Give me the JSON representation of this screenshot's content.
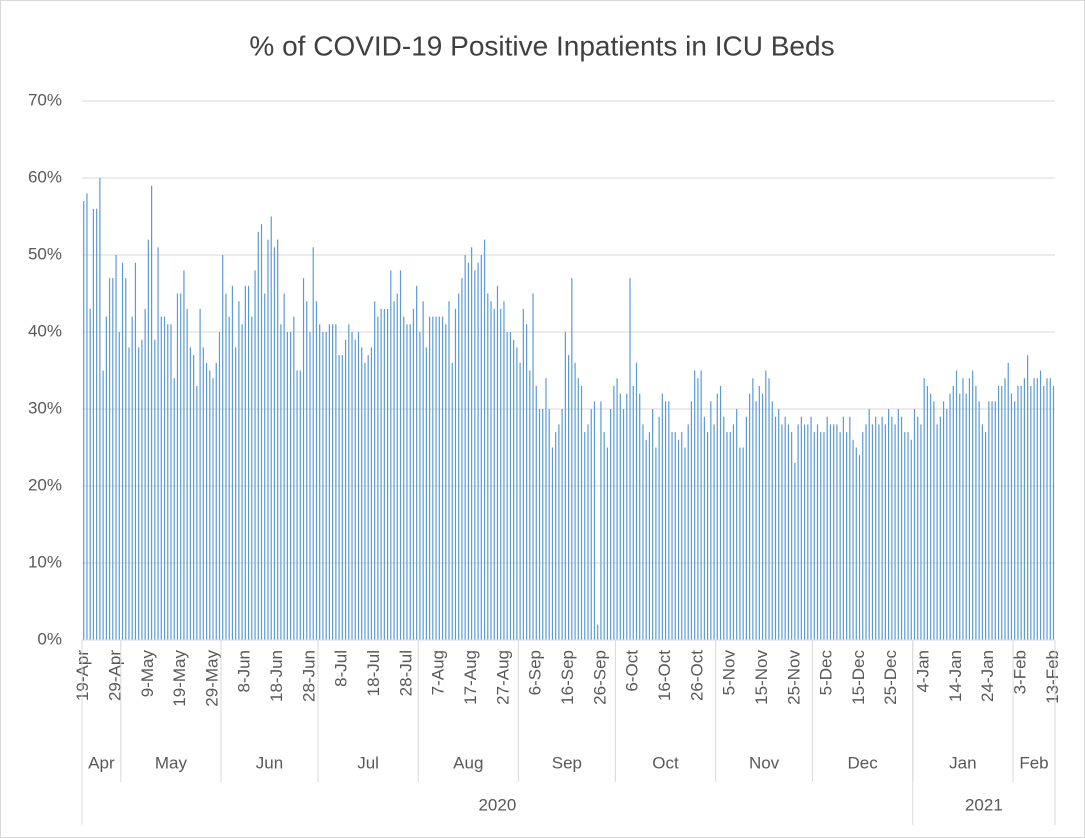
{
  "chart_data": {
    "type": "bar",
    "title": "% of COVID-19 Positive Inpatients in ICU Beds",
    "categories": [
      "19-Apr",
      null,
      null,
      null,
      null,
      null,
      null,
      null,
      null,
      null,
      "29-Apr",
      null,
      null,
      null,
      null,
      null,
      null,
      null,
      null,
      null,
      "9-May",
      null,
      null,
      null,
      null,
      null,
      null,
      null,
      null,
      null,
      "19-May",
      null,
      null,
      null,
      null,
      null,
      null,
      null,
      null,
      null,
      "29-May",
      null,
      null,
      null,
      null,
      null,
      null,
      null,
      null,
      null,
      "8-Jun",
      null,
      null,
      null,
      null,
      null,
      null,
      null,
      null,
      null,
      "18-Jun",
      null,
      null,
      null,
      null,
      null,
      null,
      null,
      null,
      null,
      "28-Jun",
      null,
      null,
      null,
      null,
      null,
      null,
      null,
      null,
      null,
      "8-Jul",
      null,
      null,
      null,
      null,
      null,
      null,
      null,
      null,
      null,
      "18-Jul",
      null,
      null,
      null,
      null,
      null,
      null,
      null,
      null,
      null,
      "28-Jul",
      null,
      null,
      null,
      null,
      null,
      null,
      null,
      null,
      null,
      "7-Aug",
      null,
      null,
      null,
      null,
      null,
      null,
      null,
      null,
      null,
      "17-Aug",
      null,
      null,
      null,
      null,
      null,
      null,
      null,
      null,
      null,
      "27-Aug",
      null,
      null,
      null,
      null,
      null,
      null,
      null,
      null,
      null,
      "6-Sep",
      null,
      null,
      null,
      null,
      null,
      null,
      null,
      null,
      null,
      "16-Sep",
      null,
      null,
      null,
      null,
      null,
      null,
      null,
      null,
      null,
      "26-Sep",
      null,
      null,
      null,
      null,
      null,
      null,
      null,
      null,
      null,
      "6-Oct",
      null,
      null,
      null,
      null,
      null,
      null,
      null,
      null,
      null,
      "16-Oct",
      null,
      null,
      null,
      null,
      null,
      null,
      null,
      null,
      null,
      "26-Oct",
      null,
      null,
      null,
      null,
      null,
      null,
      null,
      null,
      null,
      "5-Nov",
      null,
      null,
      null,
      null,
      null,
      null,
      null,
      null,
      null,
      "15-Nov",
      null,
      null,
      null,
      null,
      null,
      null,
      null,
      null,
      null,
      "25-Nov",
      null,
      null,
      null,
      null,
      null,
      null,
      null,
      null,
      null,
      "5-Dec",
      null,
      null,
      null,
      null,
      null,
      null,
      null,
      null,
      null,
      "15-Dec",
      null,
      null,
      null,
      null,
      null,
      null,
      null,
      null,
      null,
      "25-Dec",
      null,
      null,
      null,
      null,
      null,
      null,
      null,
      null,
      null,
      "4-Jan",
      null,
      null,
      null,
      null,
      null,
      null,
      null,
      null,
      null,
      "14-Jan",
      null,
      null,
      null,
      null,
      null,
      null,
      null,
      null,
      null,
      "24-Jan",
      null,
      null,
      null,
      null,
      null,
      null,
      null,
      null,
      null,
      "3-Feb",
      null,
      null,
      null,
      null,
      null,
      null,
      null,
      null,
      null,
      "13-Feb"
    ],
    "values": [
      57,
      58,
      43,
      56,
      56,
      60,
      35,
      42,
      47,
      47,
      50,
      40,
      49,
      47,
      38,
      42,
      49,
      38,
      39,
      43,
      52,
      59,
      39,
      51,
      42,
      42,
      41,
      41,
      34,
      45,
      45,
      48,
      43,
      38,
      37,
      33,
      43,
      38,
      36,
      35,
      34,
      36,
      40,
      50,
      45,
      42,
      46,
      38,
      44,
      41,
      46,
      46,
      42,
      48,
      53,
      54,
      45,
      52,
      55,
      51,
      52,
      41,
      45,
      40,
      40,
      42,
      35,
      35,
      47,
      44,
      40,
      51,
      44,
      41,
      40,
      40,
      41,
      41,
      41,
      37,
      37,
      39,
      41,
      40,
      39,
      40,
      38,
      36,
      37,
      38,
      44,
      42,
      43,
      43,
      43,
      48,
      44,
      45,
      48,
      42,
      41,
      41,
      43,
      46,
      40,
      44,
      38,
      42,
      42,
      42,
      42,
      42,
      41,
      44,
      36,
      43,
      45,
      47,
      50,
      49,
      51,
      48,
      49,
      50,
      52,
      45,
      44,
      43,
      46,
      43,
      44,
      40,
      40,
      39,
      38,
      36,
      43,
      41,
      35,
      45,
      33,
      30,
      30,
      34,
      30,
      25,
      27,
      28,
      30,
      40,
      37,
      47,
      36,
      34,
      33,
      27,
      28,
      30,
      31,
      2,
      31,
      27,
      25,
      30,
      33,
      34,
      32,
      30,
      32,
      47,
      33,
      36,
      32,
      28,
      26,
      27,
      30,
      25,
      29,
      32,
      31,
      31,
      27,
      27,
      26,
      27,
      25,
      28,
      31,
      35,
      34,
      35,
      29,
      27,
      31,
      28,
      32,
      33,
      29,
      27,
      27,
      28,
      30,
      25,
      25,
      29,
      32,
      34,
      31,
      33,
      32,
      35,
      34,
      31,
      29,
      30,
      28,
      29,
      28,
      27,
      23,
      28,
      29,
      28,
      28,
      29,
      27,
      28,
      27,
      27,
      29,
      28,
      28,
      28,
      27,
      29,
      27,
      29,
      26,
      25,
      24,
      27,
      28,
      30,
      28,
      29,
      28,
      29,
      28,
      30,
      29,
      28,
      30,
      29,
      27,
      27,
      26,
      30,
      29,
      28,
      34,
      33,
      32,
      31,
      28,
      29,
      31,
      30,
      32,
      33,
      35,
      32,
      34,
      32,
      34,
      35,
      33,
      31,
      28,
      27,
      31,
      31,
      31,
      33,
      33,
      34,
      36,
      32,
      31,
      33,
      33,
      34,
      37,
      33,
      34,
      34,
      35,
      33,
      34,
      34,
      33
    ],
    "months": [
      {
        "label": "Apr",
        "span": 12
      },
      {
        "label": "May",
        "span": 31
      },
      {
        "label": "Jun",
        "span": 30
      },
      {
        "label": "Jul",
        "span": 31
      },
      {
        "label": "Aug",
        "span": 31
      },
      {
        "label": "Sep",
        "span": 30
      },
      {
        "label": "Oct",
        "span": 31
      },
      {
        "label": "Nov",
        "span": 30
      },
      {
        "label": "Dec",
        "span": 31
      },
      {
        "label": "Jan",
        "span": 31
      },
      {
        "label": "Feb",
        "span": 13
      }
    ],
    "years": [
      {
        "label": "2020",
        "months": 9
      },
      {
        "label": "2021",
        "months": 2
      }
    ],
    "color": "#5b9bd5",
    "ylim": [
      0,
      70
    ],
    "yticks": [
      {
        "value": 0,
        "label": "0%"
      },
      {
        "value": 10,
        "label": "10%"
      },
      {
        "value": 20,
        "label": "20%"
      },
      {
        "value": 30,
        "label": "30%"
      },
      {
        "value": 40,
        "label": "40%"
      },
      {
        "value": 50,
        "label": "50%"
      },
      {
        "value": 60,
        "label": "60%"
      },
      {
        "value": 70,
        "label": "70%"
      }
    ],
    "grid": true
  }
}
